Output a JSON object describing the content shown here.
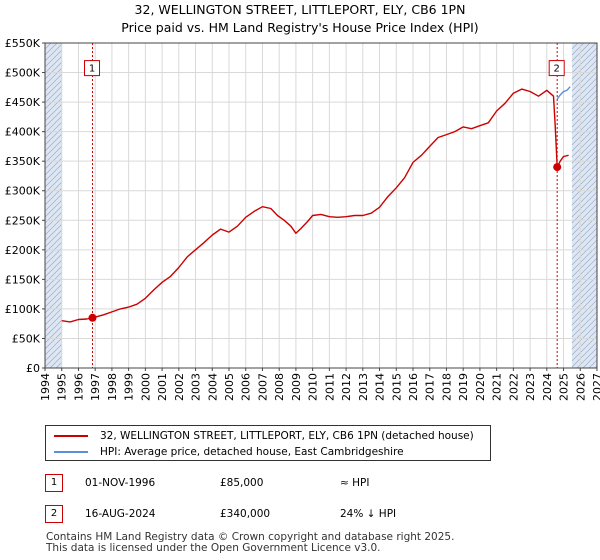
{
  "header": {
    "title": "32, WELLINGTON STREET, LITTLEPORT, ELY, CB6 1PN",
    "subtitle": "Price paid vs. HM Land Registry's House Price Index (HPI)"
  },
  "colors": {
    "property": "#cc0000",
    "hpi": "#5b8fd8",
    "grid": "#d9d9d9",
    "plot_bg": "#ffffff",
    "shade": "#dde6f3"
  },
  "chart_data": {
    "type": "line",
    "title": "Price paid vs. HM Land Registry's House Price Index (HPI)",
    "xlim": [
      1994,
      2027
    ],
    "ylim": [
      0,
      550000
    ],
    "y_ticks": [
      0,
      50000,
      100000,
      150000,
      200000,
      250000,
      300000,
      350000,
      400000,
      450000,
      500000,
      550000
    ],
    "y_tick_labels": [
      "£0",
      "£50K",
      "£100K",
      "£150K",
      "£200K",
      "£250K",
      "£300K",
      "£350K",
      "£400K",
      "£450K",
      "£500K",
      "£550K"
    ],
    "x_ticks": [
      1994,
      1995,
      1996,
      1997,
      1998,
      1999,
      2000,
      2001,
      2002,
      2003,
      2004,
      2005,
      2006,
      2007,
      2008,
      2009,
      2010,
      2011,
      2012,
      2013,
      2014,
      2015,
      2016,
      2017,
      2018,
      2019,
      2020,
      2021,
      2022,
      2023,
      2024,
      2025,
      2026,
      2027
    ],
    "x_tick_labels": [
      "1994",
      "1995",
      "1996",
      "1997",
      "1998",
      "1999",
      "2000",
      "2001",
      "2002",
      "2003",
      "2004",
      "2005",
      "2006",
      "2007",
      "2008",
      "2009",
      "2010",
      "2011",
      "2012",
      "2013",
      "2014",
      "2015",
      "2016",
      "2017",
      "2018",
      "2019",
      "2020",
      "2021",
      "2022",
      "2023",
      "2024",
      "2025",
      "2026",
      "2027"
    ],
    "data_start": 1995.0,
    "data_end": 2025.5,
    "series": [
      {
        "name": "32, WELLINGTON STREET, LITTLEPORT, ELY, CB6 1PN (detached house)",
        "color": "#cc0000",
        "x": [
          1995.0,
          1995.5,
          1996.0,
          1996.5,
          1996.84,
          1997.5,
          1998.0,
          1998.5,
          1999.0,
          1999.5,
          2000.0,
          2000.5,
          2001.0,
          2001.5,
          2002.0,
          2002.5,
          2003.0,
          2003.5,
          2004.0,
          2004.5,
          2005.0,
          2005.5,
          2006.0,
          2006.5,
          2007.0,
          2007.5,
          2007.9,
          2008.3,
          2008.7,
          2009.0,
          2009.3,
          2009.7,
          2010.0,
          2010.5,
          2011.0,
          2011.5,
          2012.0,
          2012.5,
          2013.0,
          2013.5,
          2014.0,
          2014.5,
          2015.0,
          2015.5,
          2016.0,
          2016.5,
          2017.0,
          2017.5,
          2018.0,
          2018.5,
          2019.0,
          2019.5,
          2020.0,
          2020.5,
          2021.0,
          2021.5,
          2022.0,
          2022.5,
          2023.0,
          2023.5,
          2024.0,
          2024.4,
          2024.5,
          2024.62,
          2024.8,
          2025.0,
          2025.3
        ],
        "values": [
          80000,
          78000,
          82000,
          83000,
          85000,
          90000,
          95000,
          100000,
          103000,
          108000,
          118000,
          132000,
          145000,
          155000,
          170000,
          188000,
          200000,
          212000,
          225000,
          235000,
          230000,
          240000,
          255000,
          265000,
          273000,
          270000,
          258000,
          250000,
          240000,
          228000,
          236000,
          248000,
          258000,
          260000,
          256000,
          255000,
          256000,
          258000,
          258000,
          262000,
          272000,
          290000,
          305000,
          322000,
          348000,
          360000,
          375000,
          390000,
          395000,
          400000,
          408000,
          405000,
          410000,
          415000,
          435000,
          448000,
          465000,
          472000,
          468000,
          460000,
          470000,
          460000,
          410000,
          340000,
          350000,
          358000,
          360000
        ]
      },
      {
        "name": "HPI: Average price, detached house, East Cambridgeshire",
        "color": "#5b8fd8",
        "x": [
          2024.62,
          2024.8,
          2025.0,
          2025.2,
          2025.4
        ],
        "values": [
          455000,
          462000,
          468000,
          470000,
          476000
        ]
      }
    ],
    "sale_points": [
      {
        "label": "1",
        "x": 1996.84,
        "value": 85000
      },
      {
        "label": "2",
        "x": 2024.62,
        "value": 340000
      }
    ],
    "marker_top_value": 505000
  },
  "legend": {
    "items": [
      {
        "label": "32, WELLINGTON STREET, LITTLEPORT, ELY, CB6 1PN (detached house)",
        "color": "#cc0000"
      },
      {
        "label": "HPI: Average price, detached house, East Cambridgeshire",
        "color": "#5b8fd8"
      }
    ]
  },
  "sales": [
    {
      "label": "1",
      "date": "01-NOV-1996",
      "price": "£85,000",
      "hpi": "≈ HPI"
    },
    {
      "label": "2",
      "date": "16-AUG-2024",
      "price": "£340,000",
      "hpi": "24% ↓ HPI"
    }
  ],
  "footer": {
    "line1": "Contains HM Land Registry data © Crown copyright and database right 2025.",
    "line2": "This data is licensed under the Open Government Licence v3.0."
  }
}
